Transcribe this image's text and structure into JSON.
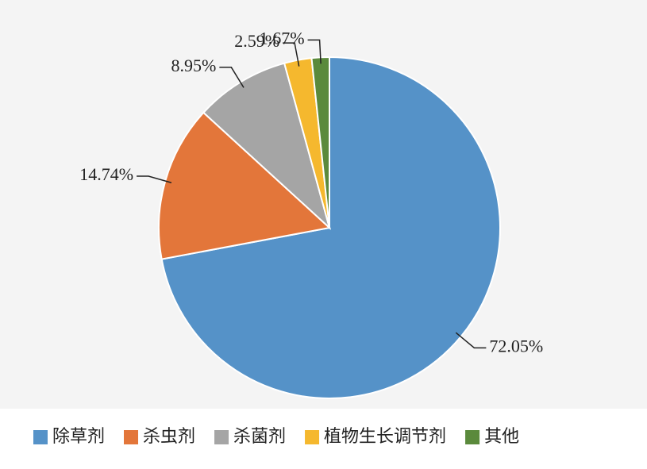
{
  "chart_data": {
    "type": "pie",
    "categories": [
      "除草剂",
      "杀虫剂",
      "杀菌剂",
      "植物生长调节剂",
      "其他"
    ],
    "values": [
      72.05,
      14.74,
      8.95,
      2.59,
      1.67
    ],
    "value_labels": [
      "72.05%",
      "14.74%",
      "8.95%",
      "2.59%",
      "1.67%"
    ],
    "colors": [
      "#5592c8",
      "#e3763a",
      "#a5a5a5",
      "#f5b82e",
      "#5b8a3c"
    ],
    "legend": "bottom"
  }
}
